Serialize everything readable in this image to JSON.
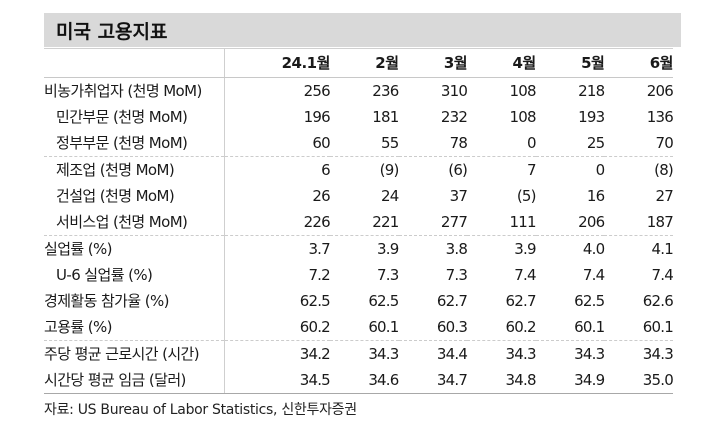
{
  "title": "미국 고용지표",
  "table": {
    "columns": [
      "",
      "24.1월",
      "2월",
      "3월",
      "4월",
      "5월",
      "6월"
    ],
    "rows": [
      {
        "label": "비농가취업자 (천명 MoM)",
        "indent": false,
        "values": [
          "256",
          "236",
          "310",
          "108",
          "218",
          "206"
        ]
      },
      {
        "label": "민간부문 (천명 MoM)",
        "indent": true,
        "values": [
          "196",
          "181",
          "232",
          "108",
          "193",
          "136"
        ]
      },
      {
        "label": "정부부문 (천명 MoM)",
        "indent": true,
        "values": [
          "60",
          "55",
          "78",
          "0",
          "25",
          "70"
        ]
      },
      {
        "label": "제조업 (천명 MoM)",
        "indent": true,
        "values": [
          "6",
          "(9)",
          "(6)",
          "7",
          "0",
          "(8)"
        ]
      },
      {
        "label": "건설업 (천명 MoM)",
        "indent": true,
        "values": [
          "26",
          "24",
          "37",
          "(5)",
          "16",
          "27"
        ]
      },
      {
        "label": "서비스업 (천명 MoM)",
        "indent": true,
        "values": [
          "226",
          "221",
          "277",
          "111",
          "206",
          "187"
        ]
      },
      {
        "label": "실업률 (%)",
        "indent": false,
        "values": [
          "3.7",
          "3.9",
          "3.8",
          "3.9",
          "4.0",
          "4.1"
        ]
      },
      {
        "label": "U-6 실업률 (%)",
        "indent": true,
        "values": [
          "7.2",
          "7.3",
          "7.3",
          "7.4",
          "7.4",
          "7.4"
        ]
      },
      {
        "label": "경제활동 참가율 (%)",
        "indent": false,
        "values": [
          "62.5",
          "62.5",
          "62.7",
          "62.7",
          "62.5",
          "62.6"
        ]
      },
      {
        "label": "고용률 (%)",
        "indent": false,
        "values": [
          "60.2",
          "60.1",
          "60.3",
          "60.2",
          "60.1",
          "60.1"
        ]
      },
      {
        "label": "주당 평균 근로시간 (시간)",
        "indent": false,
        "values": [
          "34.2",
          "34.3",
          "34.4",
          "34.3",
          "34.3",
          "34.3"
        ]
      },
      {
        "label": "시간당 평균 임금 (달러)",
        "indent": false,
        "values": [
          "34.5",
          "34.6",
          "34.7",
          "34.8",
          "34.9",
          "35.0"
        ]
      }
    ]
  },
  "source": "자료: US Bureau of Labor Statistics, 신한투자증권"
}
